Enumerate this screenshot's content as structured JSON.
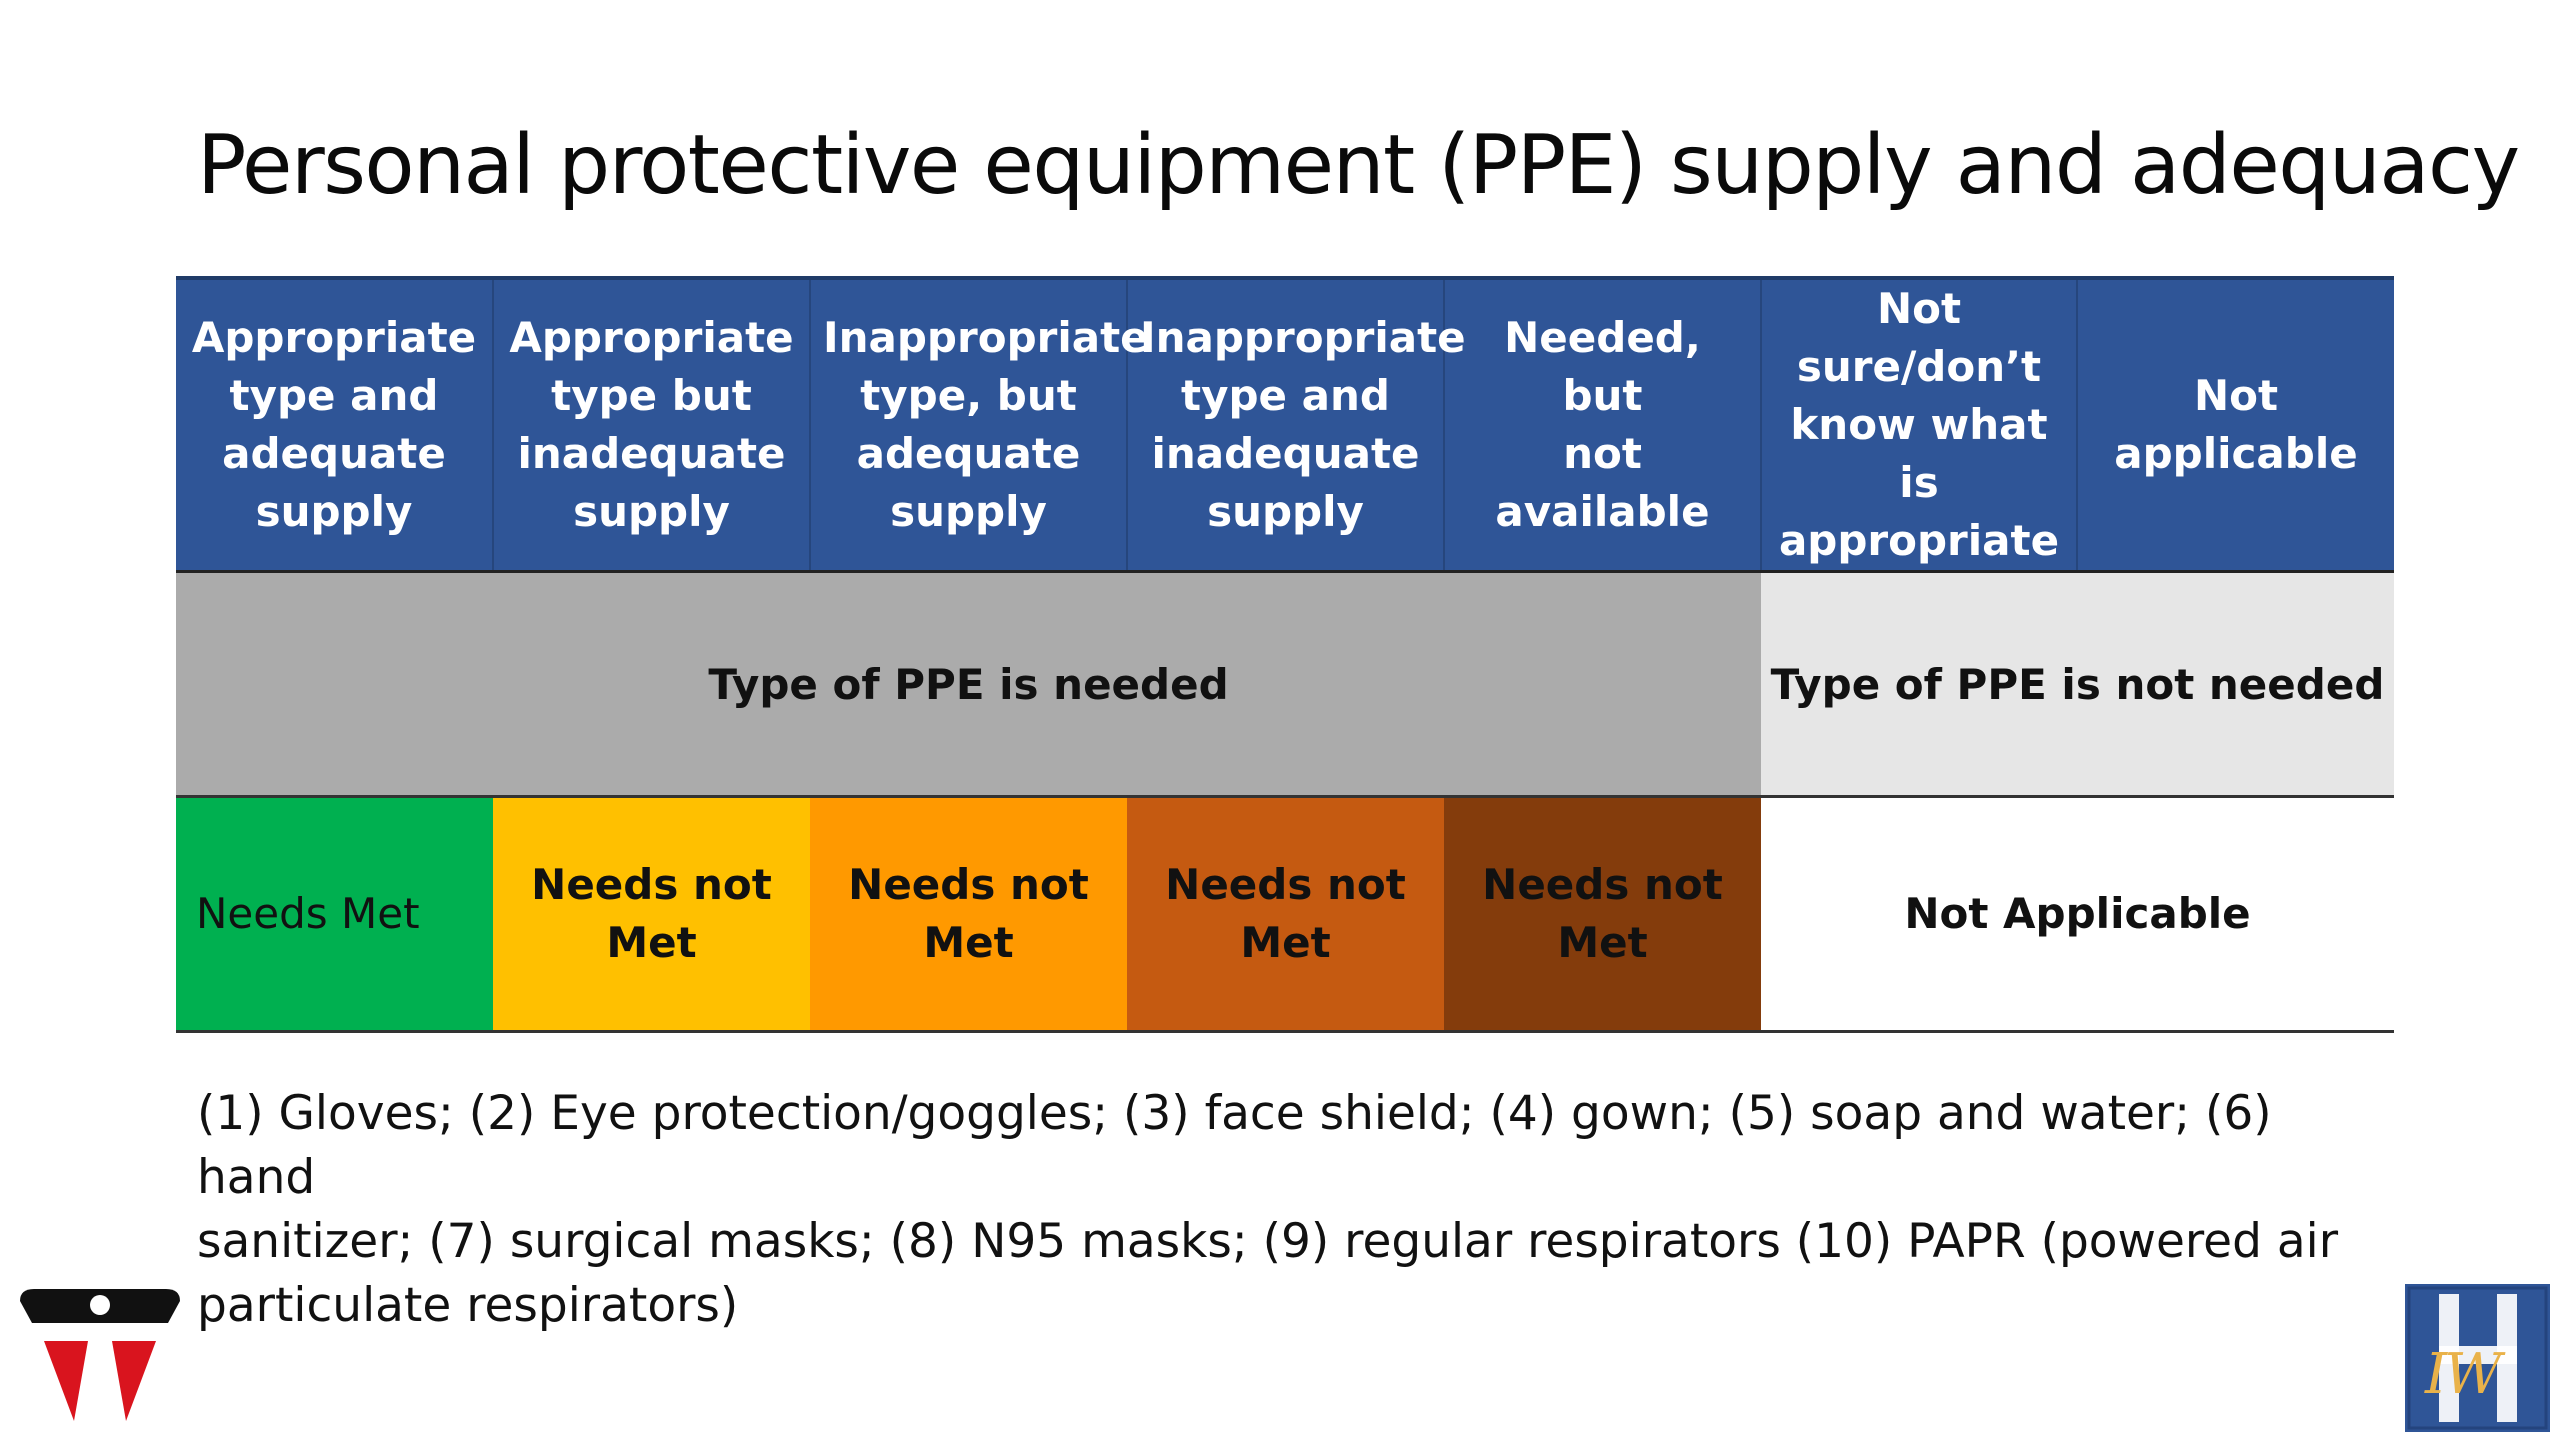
{
  "slide": {
    "title": "Personal protective equipment (PPE) supply and adequacy"
  },
  "table": {
    "headers": [
      {
        "lines": [
          "Appropriate",
          "type and",
          "adequate",
          "supply"
        ]
      },
      {
        "lines": [
          "Appropriate",
          "type but",
          "inadequate",
          "supply"
        ]
      },
      {
        "lines": [
          "Inappropriate",
          "type, but",
          "adequate",
          "supply"
        ]
      },
      {
        "lines": [
          "Inappropriate",
          "type and",
          "inadequate",
          "supply"
        ]
      },
      {
        "lines": [
          "Needed, but",
          "not available"
        ]
      },
      {
        "lines": [
          "Not",
          "sure/don’t",
          "know what is",
          "appropriate"
        ]
      },
      {
        "lines": [
          "Not",
          "applicable"
        ]
      }
    ],
    "need_row": {
      "needed": "Type of PPE is needed",
      "not_needed": "Type of PPE is not needed"
    },
    "status_row": {
      "met": "Needs Met",
      "not_met": [
        "Needs not",
        "Met"
      ],
      "not_applicable": "Not Applicable"
    },
    "colors": {
      "header_bg": "#2f5597",
      "needed_bg": "#ababab",
      "not_needed_bg": "#e6e6e6",
      "met": "#00b050",
      "not_met_1": "#ffc000",
      "not_met_2": "#ff9900",
      "not_met_3": "#c55a11",
      "not_met_4": "#843c0c"
    }
  },
  "footnote": {
    "lines": [
      "(1) Gloves; (2) Eye protection/goggles; (3) face shield; (4) gown; (5) soap and water; (6) hand",
      "sanitizer; (7) surgical masks; (8) N95 masks; (9) regular respirators (10) PAPR (powered air",
      "particulate respirators)"
    ]
  },
  "logos": {
    "left": "red-black-shield-logo",
    "right": "iwh-logo",
    "right_mark": "IW"
  }
}
